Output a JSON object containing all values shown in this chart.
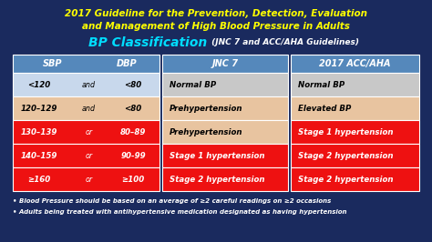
{
  "bg_color": "#1a2a5e",
  "title1": "2017 Guideline for the Prevention, Detection, Evaluation",
  "title2": "and Management of High Blood Pressure in Adults",
  "subtitle_bold": "BP Classification",
  "subtitle_normal": " (JNC 7 and ACC/AHA Guidelines)",
  "table": {
    "rows": [
      {
        "sbp": "<120",
        "conn": "and",
        "dbp": "<80",
        "jnc7": "Normal BP",
        "acc": "Normal BP",
        "sbp_bg": "#c8d8ec",
        "jnc_bg": "#c8c8c8",
        "acc_bg": "#c8c8c8",
        "sbp_fc": "#000000",
        "jnc_fc": "#000000",
        "acc_fc": "#000000"
      },
      {
        "sbp": "120–129",
        "conn": "and",
        "dbp": "<80",
        "jnc7": "Prehypertension",
        "acc": "Elevated BP",
        "sbp_bg": "#e8c4a0",
        "jnc_bg": "#e8c4a0",
        "acc_bg": "#e8c4a0",
        "sbp_fc": "#000000",
        "jnc_fc": "#000000",
        "acc_fc": "#000000"
      },
      {
        "sbp": "130–139",
        "conn": "or",
        "dbp": "80–89",
        "jnc7": "Prehypertension",
        "acc": "Stage 1 hypertension",
        "sbp_bg": "#ee1111",
        "jnc_bg": "#e8c4a0",
        "acc_bg": "#ee1111",
        "sbp_fc": "#ffffff",
        "jnc_fc": "#000000",
        "acc_fc": "#ffffff"
      },
      {
        "sbp": "140–159",
        "conn": "or",
        "dbp": "90-99",
        "jnc7": "Stage 1 hypertension",
        "acc": "Stage 2 hypertension",
        "sbp_bg": "#ee1111",
        "jnc_bg": "#ee1111",
        "acc_bg": "#ee1111",
        "sbp_fc": "#ffffff",
        "jnc_fc": "#ffffff",
        "acc_fc": "#ffffff"
      },
      {
        "sbp": "≥160",
        "conn": "or",
        "dbp": "≥100",
        "jnc7": "Stage 2 hypertension",
        "acc": "Stage 2 hypertension",
        "sbp_bg": "#ee1111",
        "jnc_bg": "#ee1111",
        "acc_bg": "#ee1111",
        "sbp_fc": "#ffffff",
        "jnc_fc": "#ffffff",
        "acc_fc": "#ffffff"
      }
    ],
    "header_bg": "#5588bb",
    "header_fc": "#ffffff"
  },
  "footnote1": "Blood Pressure should be based on an average of ≥2 careful readings on ≥2 occasions",
  "footnote2": "Adults being treated with antihypertensive medication designated as having hypertension"
}
